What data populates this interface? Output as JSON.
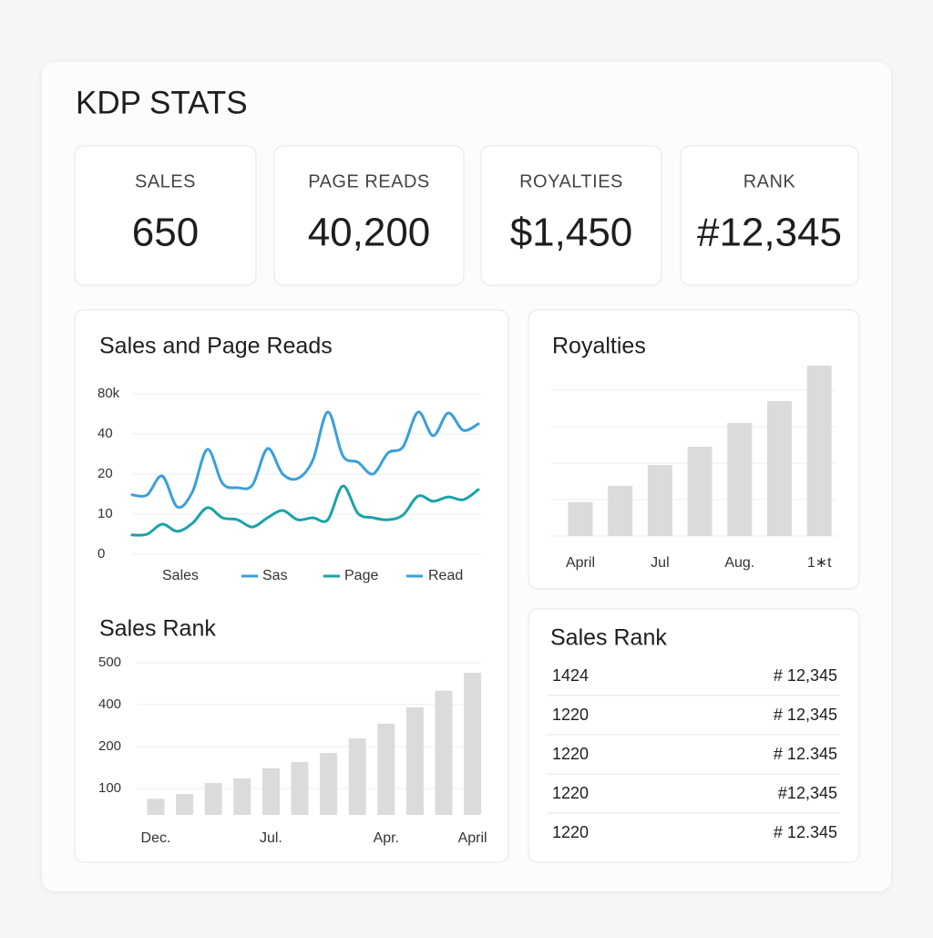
{
  "header": {
    "title": "KDP STATS"
  },
  "stats": [
    {
      "label": "SALES",
      "value": "650"
    },
    {
      "label": "PAGE READS",
      "value": "40,200"
    },
    {
      "label": "ROYALTIES",
      "value": "$1,450"
    },
    {
      "label": "RANK",
      "value": "#12,345"
    }
  ],
  "charts": [
    {
      "type": "line",
      "title": "Sales and Page Reads",
      "x_label": "Sales",
      "ylim": [
        0,
        80
      ],
      "yticks": [
        0,
        10,
        20,
        40,
        {
          "value": 80,
          "label": "80k"
        }
      ],
      "grid": true,
      "series": [
        {
          "color": "#3a9fdc",
          "values": [
            14.8,
            14.8,
            19.5,
            11.8,
            15.5,
            32.3,
            17.7,
            16.6,
            17.3,
            32.7,
            20,
            18.9,
            26.8,
            61.8,
            29.1,
            25.9,
            20,
            30.5,
            33.6,
            61.8,
            39.1,
            60.9,
            43.6,
            50
          ]
        },
        {
          "color": "#1aa3a8",
          "values": [
            4.8,
            5,
            7.5,
            5.7,
            7.7,
            11.6,
            9.1,
            8.6,
            6.8,
            9.1,
            10.9,
            8.6,
            9.1,
            8.6,
            17,
            10.2,
            9.1,
            8.6,
            9.8,
            14.5,
            13.2,
            14.3,
            13.6,
            16.1
          ]
        }
      ],
      "legend": [
        {
          "label": "Sas",
          "color": "#3a9fdc"
        },
        {
          "label": "Page",
          "color": "#1aa3a8"
        },
        {
          "label": "Read",
          "color": "#3a9fdc"
        }
      ]
    },
    {
      "type": "bar",
      "title": "Royalties",
      "color": "#dcdbd9",
      "categories": [
        "April",
        null,
        "Jul",
        null,
        "Aug.",
        null,
        "1∗t"
      ],
      "values": [
        37,
        55,
        78,
        98,
        124,
        148,
        187
      ]
    },
    {
      "type": "bar",
      "title": "Sales Rank",
      "color": "#dcdbd9",
      "categories": [
        "Dec.",
        null,
        null,
        null,
        "Jul.",
        null,
        null,
        null,
        "Apr.",
        null,
        null,
        "April"
      ],
      "values": [
        61,
        79,
        113,
        124,
        148,
        163,
        185,
        239,
        309,
        387,
        433,
        476
      ],
      "ylim": [
        0,
        500
      ],
      "yticks": [
        100,
        200,
        400,
        500
      ]
    }
  ],
  "table": {
    "title": "Sales Rank",
    "rows": [
      [
        "1424",
        "# 12,345"
      ],
      [
        "1220",
        "# 12,345"
      ],
      [
        "1220",
        "# 12.345"
      ],
      [
        "1220",
        "#12,345"
      ],
      [
        "1220",
        "# 12.345"
      ]
    ]
  }
}
